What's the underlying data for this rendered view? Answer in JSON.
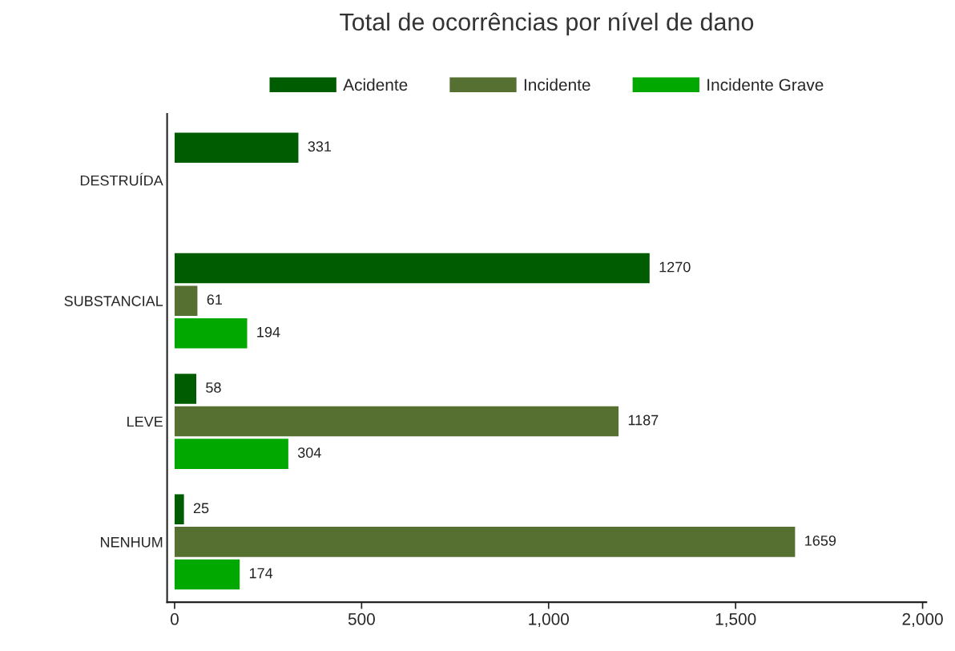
{
  "chart_data": {
    "type": "bar",
    "orientation": "horizontal",
    "title": "Total de ocorrências por nível de dano",
    "categories": [
      "DESTRUÍDA",
      "SUBSTANCIAL",
      "LEVE",
      "NENHUM"
    ],
    "series": [
      {
        "name": "Acidente",
        "color": "#005c00",
        "values": [
          331,
          1270,
          58,
          25
        ]
      },
      {
        "name": "Incidente",
        "color": "#557030",
        "values": [
          null,
          61,
          1187,
          1659
        ]
      },
      {
        "name": "Incidente Grave",
        "color": "#00a800",
        "values": [
          null,
          194,
          304,
          174
        ]
      }
    ],
    "xlim": [
      -20,
      2010
    ],
    "xticks": [
      0,
      500,
      {
        "value": 1000,
        "label": "1,000"
      },
      {
        "value": 1500,
        "label": "1,500"
      },
      {
        "value": 2000,
        "label": "2,000"
      }
    ],
    "data_labels": true,
    "legend": "top",
    "grid": false
  }
}
